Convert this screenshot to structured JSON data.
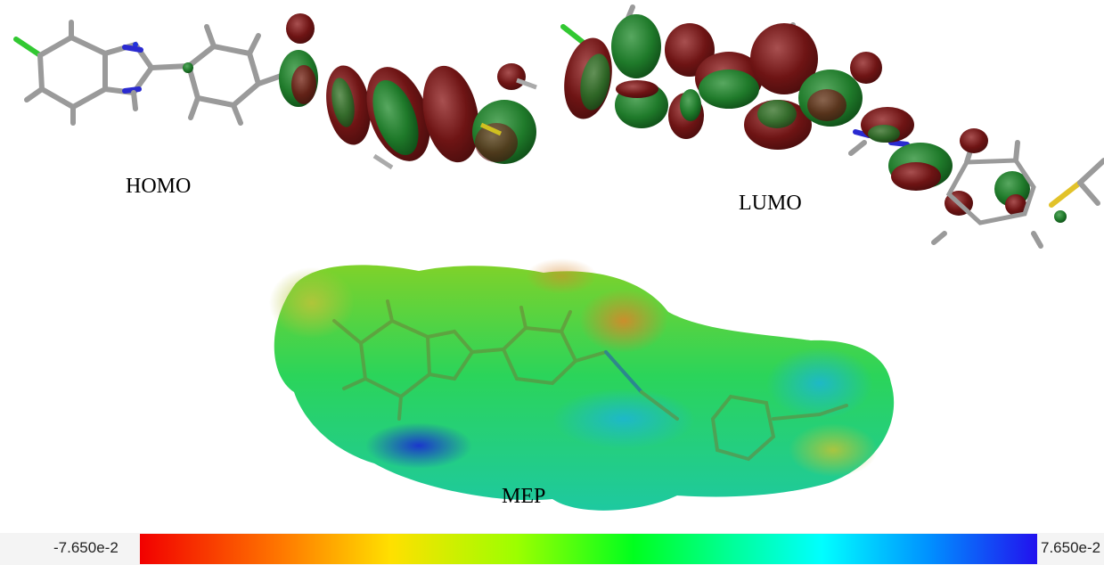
{
  "labels": {
    "homo": "HOMO",
    "lumo": "LUMO",
    "mep": "MEP"
  },
  "color_scale": {
    "min": "-7.650e-2",
    "max": "7.650e-2",
    "colors": [
      "#f20000",
      "#ff7a00",
      "#ffe000",
      "#9cff00",
      "#00ff1e",
      "#00ff99",
      "#00ffff",
      "#0090ff",
      "#2211ee"
    ]
  },
  "lobe_colors": {
    "positive": "#7a1515",
    "negative": "#1e7a27"
  }
}
